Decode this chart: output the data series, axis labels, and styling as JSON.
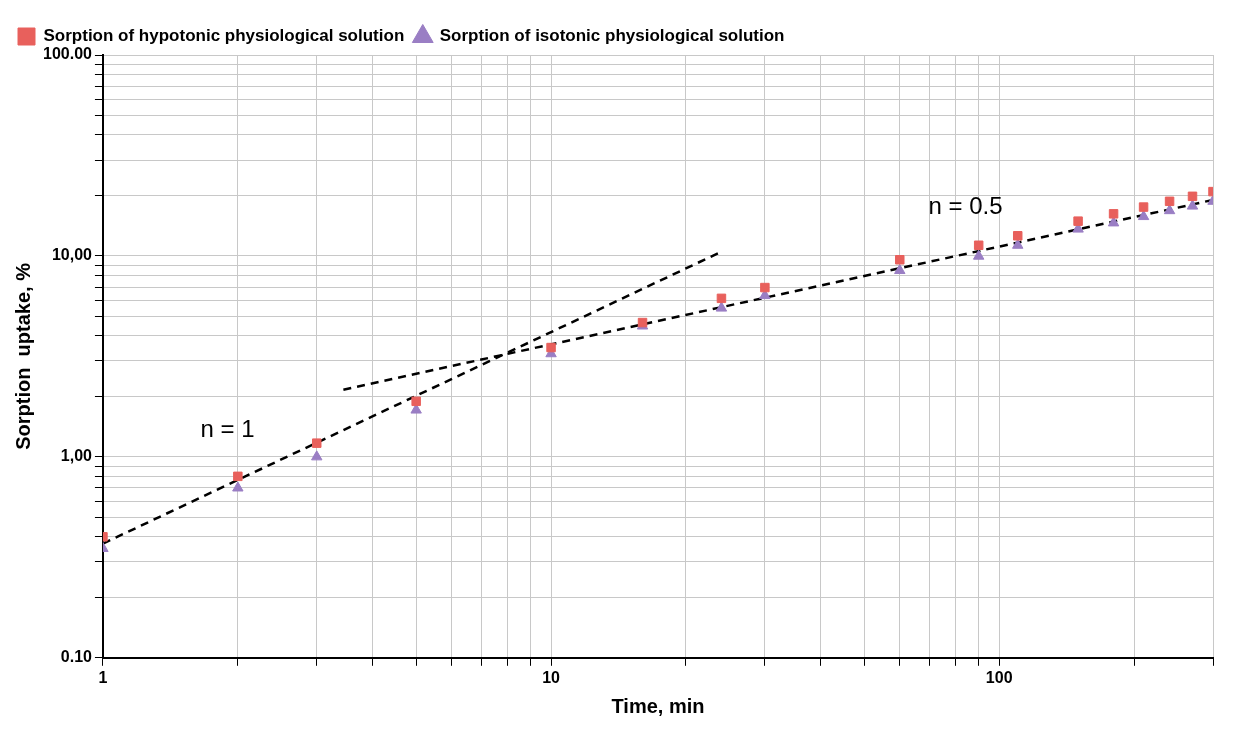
{
  "chart_data": {
    "type": "scatter",
    "xlabel": "Time, min",
    "ylabel": "Sorption  uptake, %",
    "log": "xy",
    "grid": true,
    "legend": "top left",
    "xlim": [
      1,
      300
    ],
    "ylim": [
      0.1,
      100
    ],
    "xticks": [
      1,
      {
        "value": 2,
        "label": null
      },
      {
        "value": 3,
        "label": null
      },
      {
        "value": 4,
        "label": null
      },
      {
        "value": 5,
        "label": null
      },
      {
        "value": 6,
        "label": null
      },
      {
        "value": 7,
        "label": null
      },
      {
        "value": 8,
        "label": null
      },
      {
        "value": 9,
        "label": null
      },
      10,
      {
        "value": 20,
        "label": null
      },
      {
        "value": 30,
        "label": null
      },
      {
        "value": 40,
        "label": null
      },
      {
        "value": 50,
        "label": null
      },
      {
        "value": 60,
        "label": null
      },
      {
        "value": 70,
        "label": null
      },
      {
        "value": 80,
        "label": null
      },
      {
        "value": 90,
        "label": null
      },
      100,
      {
        "value": 200,
        "label": null
      },
      {
        "value": 300,
        "label": null
      }
    ],
    "yticks": [
      {
        "value": 0.1,
        "label": "0.10"
      },
      {
        "value": 0.2,
        "label": null
      },
      {
        "value": 0.3,
        "label": null
      },
      {
        "value": 0.4,
        "label": null
      },
      {
        "value": 0.5,
        "label": null
      },
      {
        "value": 0.6,
        "label": null
      },
      {
        "value": 0.7,
        "label": null
      },
      {
        "value": 0.8,
        "label": null
      },
      {
        "value": 0.9,
        "label": null
      },
      {
        "value": 1,
        "label": "1,00"
      },
      {
        "value": 2,
        "label": null
      },
      {
        "value": 3,
        "label": null
      },
      {
        "value": 4,
        "label": null
      },
      {
        "value": 5,
        "label": null
      },
      {
        "value": 6,
        "label": null
      },
      {
        "value": 7,
        "label": null
      },
      {
        "value": 8,
        "label": null
      },
      {
        "value": 9,
        "label": null
      },
      {
        "value": 10,
        "label": "10,00"
      },
      {
        "value": 20,
        "label": null
      },
      {
        "value": 30,
        "label": null
      },
      {
        "value": 40,
        "label": null
      },
      {
        "value": 50,
        "label": null
      },
      {
        "value": 60,
        "label": null
      },
      {
        "value": 70,
        "label": null
      },
      {
        "value": 80,
        "label": null
      },
      {
        "value": 90,
        "label": null
      },
      {
        "value": 100,
        "label": "100.00"
      }
    ],
    "x": [
      1,
      2,
      3,
      5,
      10,
      16,
      24,
      30,
      60,
      90,
      110,
      150,
      180,
      210,
      240,
      270,
      300
    ],
    "series": [
      {
        "name": "Sorption of hypotonic physiological solution",
        "color": "#e8605c",
        "marker": "square",
        "values": [
          0.4,
          0.8,
          1.17,
          1.89,
          3.5,
          4.66,
          6.15,
          6.96,
          9.57,
          11.3,
          12.6,
          14.9,
          16.2,
          17.5,
          18.7,
          19.8,
          20.9
        ]
      },
      {
        "name": "Sorption of isotonic physiological solution",
        "color": "#9a7ec4",
        "marker": "triangle",
        "values": [
          0.35,
          0.7,
          1.0,
          1.71,
          3.26,
          4.48,
          5.5,
          6.35,
          8.46,
          9.97,
          11.3,
          13.6,
          14.6,
          15.7,
          16.8,
          17.7,
          18.7
        ]
      },
      {
        "type": "line",
        "color": "#000000",
        "marker": "none",
        "line_style": "dashed",
        "x": [
          1,
          24
        ],
        "values": [
          0.37,
          10.5
        ]
      },
      {
        "type": "line",
        "color": "#000000",
        "marker": "none",
        "line_style": "dashed",
        "x": [
          3.44,
          300
        ],
        "values": [
          2.16,
          19.0
        ]
      }
    ],
    "annotations": [
      "n = 1",
      "n = 0.5"
    ]
  }
}
